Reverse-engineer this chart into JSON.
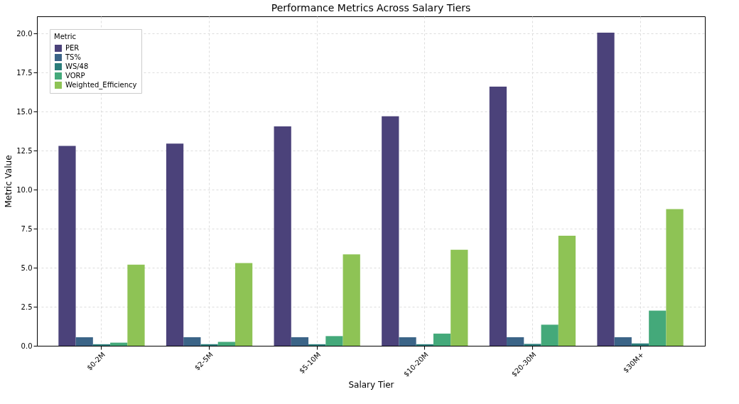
{
  "chart_data": {
    "type": "bar",
    "title": "Performance Metrics Across Salary Tiers",
    "xlabel": "Salary Tier",
    "ylabel": "Metric Value",
    "legend_title": "Metric",
    "categories": [
      "$0-2M",
      "$2-5M",
      "$5-10M",
      "$10-20M",
      "$20-30M",
      "$30M+"
    ],
    "series": [
      {
        "name": "PER",
        "color": "#4b427a",
        "values": [
          12.8,
          12.95,
          14.05,
          14.7,
          16.6,
          20.05
        ]
      },
      {
        "name": "TS%",
        "color": "#3b6487",
        "values": [
          0.55,
          0.55,
          0.55,
          0.55,
          0.55,
          0.55
        ]
      },
      {
        "name": "WS/48",
        "color": "#2b7d7a",
        "values": [
          0.1,
          0.1,
          0.1,
          0.1,
          0.12,
          0.15
        ]
      },
      {
        "name": "VORP",
        "color": "#44a97a",
        "values": [
          0.2,
          0.25,
          0.62,
          0.78,
          1.35,
          2.25
        ]
      },
      {
        "name": "Weighted_Efficiency",
        "color": "#8ec355",
        "values": [
          5.2,
          5.3,
          5.85,
          6.15,
          7.05,
          8.75
        ]
      }
    ],
    "ylim": [
      0,
      21.1
    ],
    "yticks": [
      {
        "value": 0,
        "label": "0.0"
      },
      {
        "value": 2.5,
        "label": "2.5"
      },
      {
        "value": 5,
        "label": "5.0"
      },
      {
        "value": 7.5,
        "label": "7.5"
      },
      {
        "value": 10,
        "label": "10.0"
      },
      {
        "value": 12.5,
        "label": "12.5"
      },
      {
        "value": 15,
        "label": "15.0"
      },
      {
        "value": 17.5,
        "label": "17.5"
      },
      {
        "value": 20,
        "label": "20.0"
      }
    ],
    "grid": true,
    "legend": "top left"
  }
}
